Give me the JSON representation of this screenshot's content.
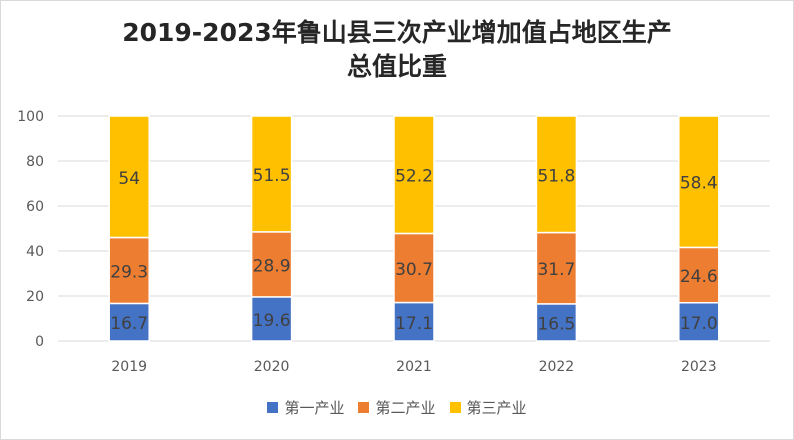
{
  "chart_data": {
    "type": "bar",
    "stacked": true,
    "title_lines": [
      "2019-2023年鲁山县三次产业增加值占地区生产",
      "总值比重"
    ],
    "categories": [
      "2019",
      "2020",
      "2021",
      "2022",
      "2023"
    ],
    "series": [
      {
        "name": "第一产业",
        "values": [
          16.7,
          19.6,
          17.1,
          16.5,
          17.0
        ],
        "labels": [
          "16.7",
          "19.6",
          "17.1",
          "16.5",
          "17.0"
        ],
        "color": "#4472c4"
      },
      {
        "name": "第二产业",
        "values": [
          29.3,
          28.9,
          30.7,
          31.7,
          24.6
        ],
        "labels": [
          "29.3",
          "28.9",
          "30.7",
          "31.7",
          "24.6"
        ],
        "color": "#ed7d31"
      },
      {
        "name": "第三产业",
        "values": [
          54,
          51.5,
          52.2,
          51.8,
          58.4
        ],
        "labels": [
          "54",
          "51.5",
          "52.2",
          "51.8",
          "58.4"
        ],
        "color": "#ffc000"
      }
    ],
    "yticks": [
      "0",
      "20",
      "40",
      "60",
      "80",
      "100"
    ],
    "ylim": [
      0,
      100
    ],
    "xlabel": "",
    "ylabel": "",
    "grid": true,
    "legend_position": "bottom"
  }
}
